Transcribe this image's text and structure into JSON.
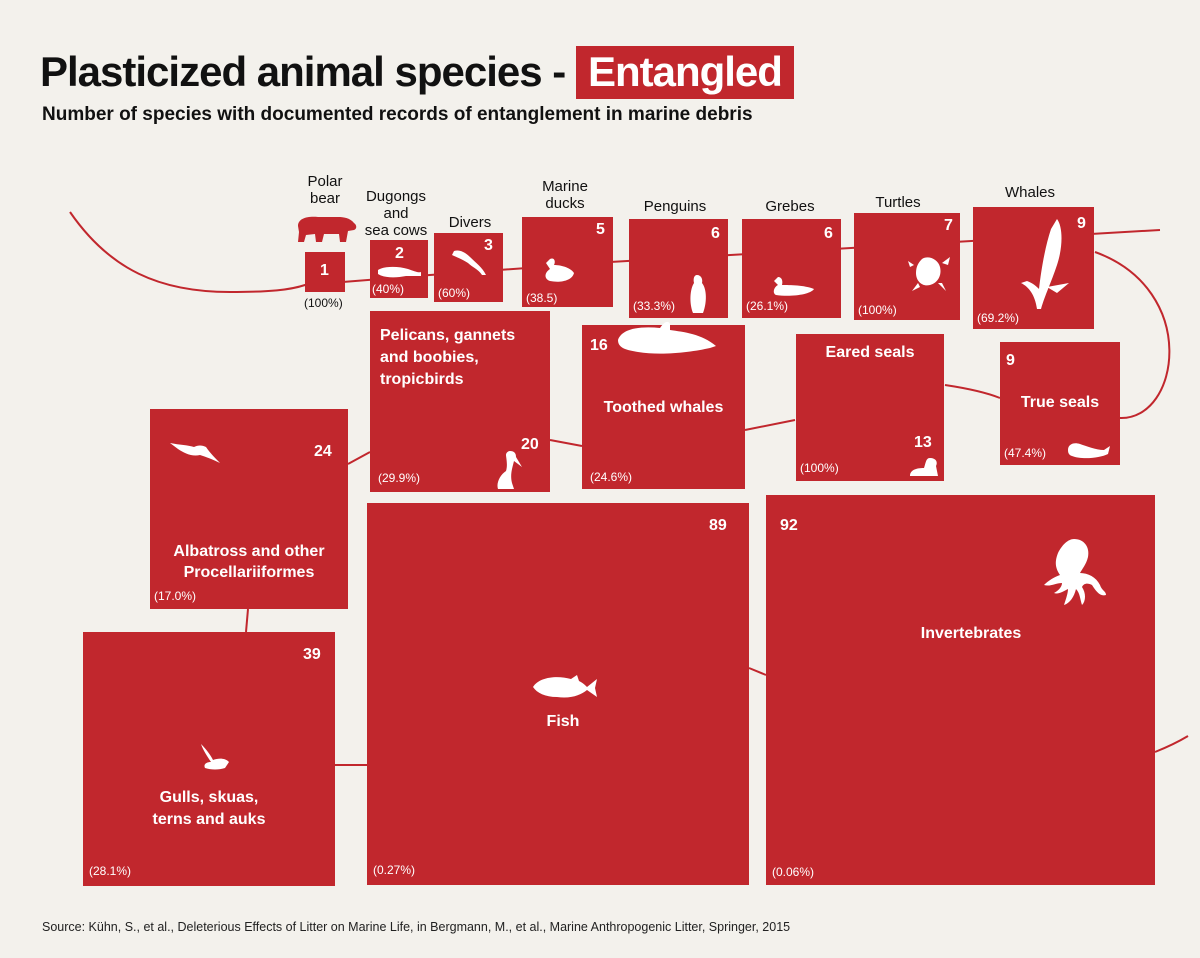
{
  "title": {
    "main": "Plasticized animal species - ",
    "highlight": "Entangled"
  },
  "subtitle": "Number of species with documented records of entanglement in marine debris",
  "source": "Source: Kühn, S., et al., Deleterious Effects of Litter on Marine Life, in Bergmann, M., et al., Marine Anthropogenic Litter, Springer, 2015",
  "colors": {
    "box": "#c1272d",
    "background": "#f3f1ec",
    "line": "#c1272d",
    "icon": "#ffffff"
  },
  "chart_data": {
    "type": "table",
    "title": "Plasticized animal species - Entangled",
    "value_label": "Number of species with documented entanglement records",
    "groups": [
      {
        "name": "Polar bear",
        "count": "1",
        "percent": "(100%)",
        "icon": "polar-bear-icon"
      },
      {
        "name": "Dugongs and sea cows",
        "count": "2",
        "percent": "(40%)",
        "icon": "dugong-icon"
      },
      {
        "name": "Divers",
        "count": "3",
        "percent": "(60%)",
        "icon": "diver-bird-icon"
      },
      {
        "name": "Marine ducks",
        "count": "5",
        "percent": "(38.5)",
        "icon": "duck-icon"
      },
      {
        "name": "Penguins",
        "count": "6",
        "percent": "(33.3%)",
        "icon": "penguin-icon"
      },
      {
        "name": "Grebes",
        "count": "6",
        "percent": "(26.1%)",
        "icon": "grebe-icon"
      },
      {
        "name": "Turtles",
        "count": "7",
        "percent": "(100%)",
        "icon": "turtle-icon"
      },
      {
        "name": "Whales",
        "count": "9",
        "percent": "(69.2%)",
        "icon": "whale-icon"
      },
      {
        "name": "Pelicans, gannets and boobies, tropicbirds",
        "count": "20",
        "percent": "(29.9%)",
        "icon": "pelican-icon"
      },
      {
        "name": "Toothed whales",
        "count": "16",
        "percent": "(24.6%)",
        "icon": "toothed-whale-icon"
      },
      {
        "name": "Eared seals",
        "count": "13",
        "percent": "(100%)",
        "icon": "eared-seal-icon"
      },
      {
        "name": "True seals",
        "count": "9",
        "percent": "(47.4%)",
        "icon": "true-seal-icon"
      },
      {
        "name": "Albatross and other Procellariiformes",
        "count": "24",
        "percent": "(17.0%)",
        "icon": "albatross-icon"
      },
      {
        "name": "Gulls, skuas, terns and auks",
        "count": "39",
        "percent": "(28.1%)",
        "icon": "gull-icon"
      },
      {
        "name": "Fish",
        "count": "89",
        "percent": "(0.27%)",
        "icon": "fish-icon"
      },
      {
        "name": "Invertebrates",
        "count": "92",
        "percent": "(0.06%)",
        "icon": "octopus-icon"
      }
    ],
    "label_lines": {
      "polar_bear": [
        "Polar",
        "bear"
      ],
      "dugongs": [
        "Dugongs",
        "and",
        "sea cows"
      ],
      "ducks": [
        "Marine",
        "ducks"
      ],
      "pelicans": [
        "Pelicans, gannets",
        "and boobies,",
        "tropicbirds"
      ],
      "albatross": [
        "Albatross and other",
        "Procellariiformes"
      ],
      "gulls": [
        "Gulls, skuas,",
        "terns and auks"
      ]
    }
  }
}
